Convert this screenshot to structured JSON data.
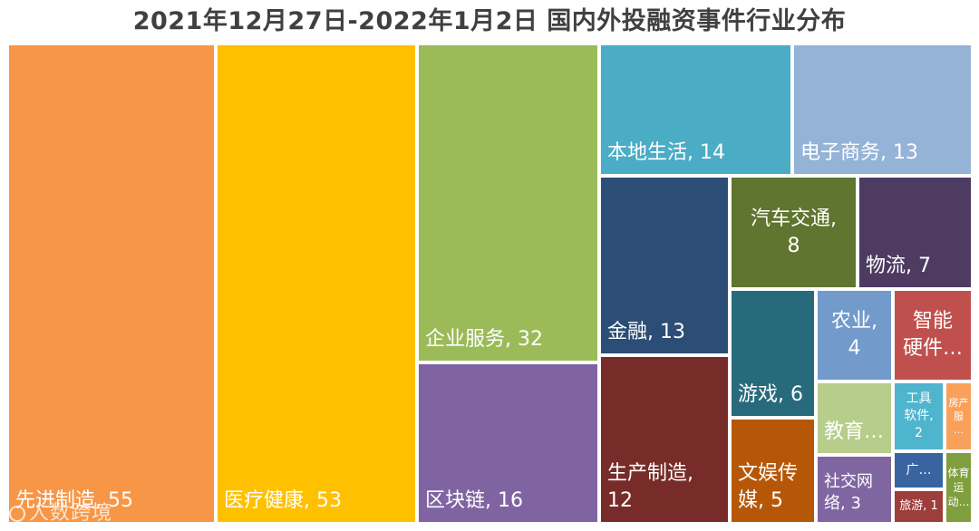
{
  "chart_data": {
    "type": "treemap",
    "title": "2021年12月27日-2022年1月2日 国内外投融资事件行业分布",
    "items": [
      {
        "label": "先进制造, 55",
        "name": "先进制造",
        "value": 55,
        "color": "#F79646"
      },
      {
        "label": "医疗健康, 53",
        "name": "医疗健康",
        "value": 53,
        "color": "#FFC000"
      },
      {
        "label": "企业服务, 32",
        "name": "企业服务",
        "value": 32,
        "color": "#9BBB59"
      },
      {
        "label": "区块链, 16",
        "name": "区块链",
        "value": 16,
        "color": "#8064A2"
      },
      {
        "label": "本地生活, 14",
        "name": "本地生活",
        "value": 14,
        "color": "#4BACC6"
      },
      {
        "label": "电子商务, 13",
        "name": "电子商务",
        "value": 13,
        "color": "#95B3D7"
      },
      {
        "label": "金融, 13",
        "name": "金融",
        "value": 13,
        "color": "#2C4D75"
      },
      {
        "label": "生产制造,\n12",
        "name": "生产制造",
        "value": 12,
        "color": "#772C2A"
      },
      {
        "label": "汽车交通,\n8",
        "name": "汽车交通",
        "value": 8,
        "color": "#5F7530"
      },
      {
        "label": "物流, 7",
        "name": "物流",
        "value": 7,
        "color": "#4D3B62"
      },
      {
        "label": "游戏, 6",
        "name": "游戏",
        "value": 6,
        "color": "#276A7C"
      },
      {
        "label": "文娱传\n媒, 5",
        "name": "文娱传媒",
        "value": 5,
        "color": "#B65708"
      },
      {
        "label": "农业,\n4",
        "name": "农业",
        "value": 4,
        "color": "#729ACA"
      },
      {
        "label": "智能\n硬件…",
        "name": "智能硬件",
        "value": 4,
        "color": "#C0504D"
      },
      {
        "label": "教育…",
        "name": "教育",
        "value": 3,
        "color": "#B7CD8C"
      },
      {
        "label": "社交网\n络, 3",
        "name": "社交网络",
        "value": 3,
        "color": "#8066A1"
      },
      {
        "label": "工具\n软件,\n2",
        "name": "工具软件",
        "value": 2,
        "color": "#4FB4CD"
      },
      {
        "label": "房产服\n…",
        "name": "房产服务",
        "value": 1,
        "color": "#F9A15A"
      },
      {
        "label": "广…",
        "name": "广告营销",
        "value": 1,
        "color": "#3A64A0"
      },
      {
        "label": "旅游, 1",
        "name": "旅游",
        "value": 1,
        "color": "#9D3E3A"
      },
      {
        "label": "体育\n运动…",
        "name": "体育运动",
        "value": 1,
        "color": "#7F9E3E"
      }
    ]
  },
  "watermark": {
    "text": "人数跨境"
  }
}
